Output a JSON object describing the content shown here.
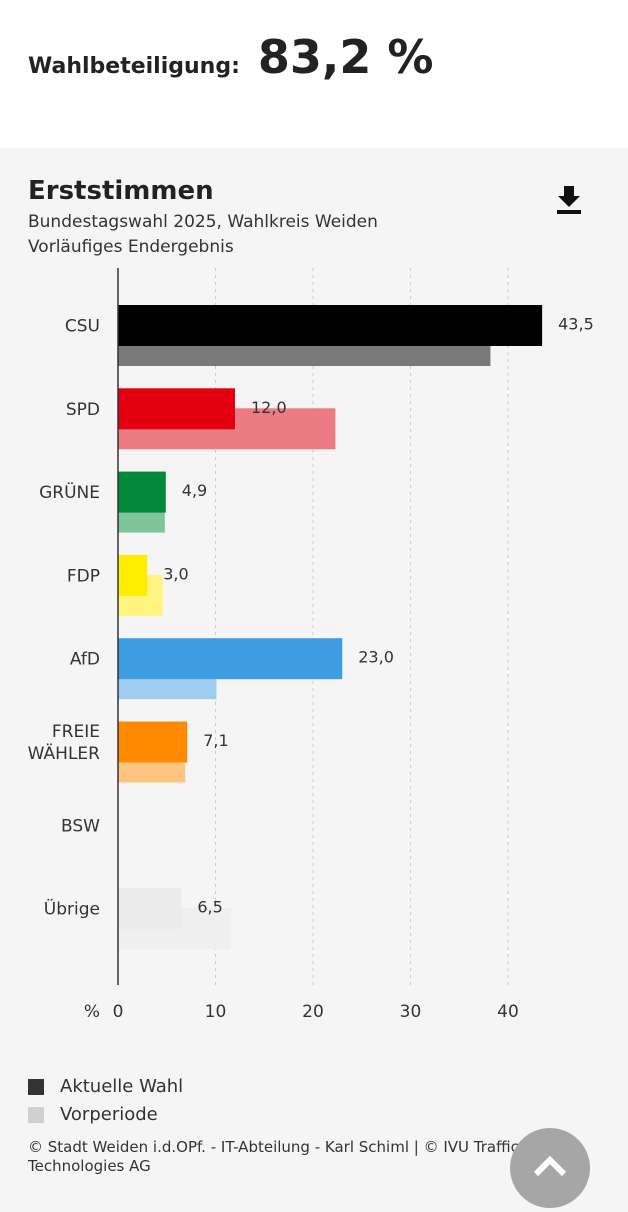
{
  "turnout": {
    "label": "Wahlbeteiligung:",
    "value": "83,2 %"
  },
  "header": {
    "title": "Erststimmen",
    "subtitle1": "Bundestagswahl 2025, Wahlkreis Weiden",
    "subtitle2": "Vorläufiges Endergebnis",
    "download_icon": "download-icon"
  },
  "chart_data": {
    "type": "bar",
    "orientation": "horizontal",
    "title": "Erststimmen",
    "xlabel": "%",
    "xlim": [
      0,
      45
    ],
    "xticks": [
      "0",
      "10",
      "20",
      "30",
      "40"
    ],
    "grid": true,
    "categories": [
      "CSU",
      "SPD",
      "GRÜNE",
      "FDP",
      "AfD",
      "FREIE WÄHLER",
      "BSW",
      "Übrige"
    ],
    "series": [
      {
        "name": "Aktuelle Wahl",
        "values": [
          43.5,
          12.0,
          4.9,
          3.0,
          23.0,
          7.1,
          null,
          6.5
        ],
        "labels": [
          "43,5",
          "12,0",
          "4,9",
          "3,0",
          "23,0",
          "7,1",
          "",
          "6,5"
        ]
      },
      {
        "name": "Vorperiode",
        "values": [
          38.2,
          22.3,
          4.8,
          4.6,
          10.1,
          6.9,
          null,
          11.6
        ]
      }
    ],
    "colors": {
      "current": [
        "#000000",
        "#e3000f",
        "#008a3a",
        "#ffed00",
        "#3d9de0",
        "#ff8a00",
        "#cccccc",
        "#ececec"
      ],
      "previous": [
        "#7a7a7a",
        "#ec7b83",
        "#80c49c",
        "#fff480",
        "#9ecdf0",
        "#ffc480",
        "#dddddd",
        "#efefef"
      ]
    },
    "legend": {
      "placement": "bottom-left",
      "current_color": "#333333",
      "previous_color": "#cccccc"
    }
  },
  "legend": {
    "current": "Aktuelle Wahl",
    "previous": "Vorperiode"
  },
  "footer": "© Stadt Weiden i.d.OPf. - IT-Abteilung - Karl Schiml | © IVU Traffic Technologies AG"
}
